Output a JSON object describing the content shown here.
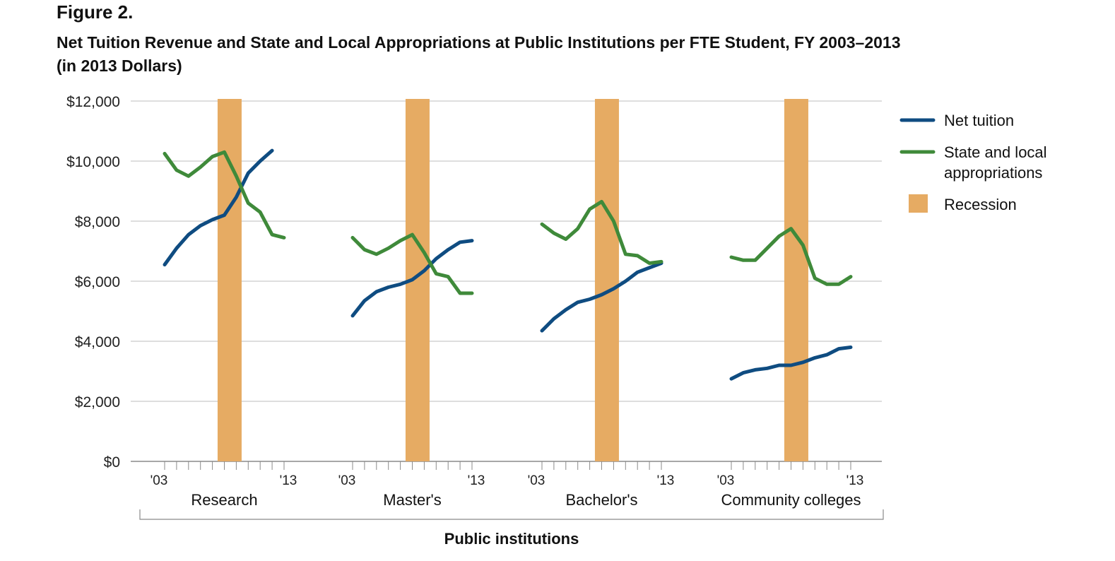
{
  "figure_label": "Figure 2.",
  "title_line1": "Net Tuition Revenue and State and Local Appropriations at Public Institutions per FTE Student, FY 2003–2013",
  "title_line2": "(in 2013 Dollars)",
  "chart_data": {
    "type": "line",
    "title": "Net Tuition Revenue and State and Local Appropriations at Public Institutions per FTE Student, FY 2003–2013 (in 2013 Dollars)",
    "xlabel": "Public institutions",
    "ylabel": "",
    "ylim": [
      0,
      12000
    ],
    "y_ticks": [
      0,
      2000,
      4000,
      6000,
      8000,
      10000,
      12000
    ],
    "y_tick_labels": [
      "$0",
      "$2,000",
      "$4,000",
      "$6,000",
      "$8,000",
      "$10,000",
      "$12,000"
    ],
    "x": [
      2003,
      2004,
      2005,
      2006,
      2007,
      2008,
      2009,
      2010,
      2011,
      2012,
      2013
    ],
    "x_tick_labels": [
      "'03",
      "'13"
    ],
    "grid": true,
    "legend_position": "right",
    "legend": {
      "net_tuition": "Net tuition",
      "state_local_line1": "State and local",
      "state_local_line2": "appropriations",
      "recession": "Recession"
    },
    "colors": {
      "net_tuition": "#0f4c81",
      "state_local": "#3f8a3a",
      "recession": "#e6ab63",
      "grid": "#bdbdbd"
    },
    "recession_years": [
      2008,
      2009
    ],
    "groups": [
      {
        "name": "Research",
        "series": [
          {
            "name": "Net tuition",
            "values": [
              6550,
              7100,
              7550,
              7850,
              8050,
              8200,
              8800,
              9600,
              10000,
              10350,
              null
            ]
          },
          {
            "name": "State and local appropriations",
            "values": [
              10250,
              9700,
              9500,
              9800,
              10150,
              10300,
              9500,
              8600,
              8300,
              7550,
              7450
            ]
          }
        ]
      },
      {
        "name": "Master's",
        "series": [
          {
            "name": "Net tuition",
            "values": [
              4850,
              5350,
              5650,
              5800,
              5900,
              6050,
              6350,
              6750,
              7050,
              7300,
              7350
            ]
          },
          {
            "name": "State and local appropriations",
            "values": [
              7450,
              7050,
              6900,
              7100,
              7350,
              7550,
              6950,
              6250,
              6150,
              5600,
              5600
            ]
          }
        ]
      },
      {
        "name": "Bachelor's",
        "series": [
          {
            "name": "Net tuition",
            "values": [
              4350,
              4750,
              5050,
              5300,
              5400,
              5550,
              5750,
              6000,
              6300,
              6450,
              6600
            ]
          },
          {
            "name": "State and local appropriations",
            "values": [
              7900,
              7600,
              7400,
              7750,
              8400,
              8650,
              8000,
              6900,
              6850,
              6600,
              6650
            ]
          }
        ]
      },
      {
        "name": "Community colleges",
        "series": [
          {
            "name": "Net tuition",
            "values": [
              2750,
              2950,
              3050,
              3100,
              3200,
              3200,
              3300,
              3450,
              3550,
              3750,
              3800
            ]
          },
          {
            "name": "State and local appropriations",
            "values": [
              6800,
              6700,
              6700,
              7100,
              7500,
              7750,
              7200,
              6100,
              5900,
              5900,
              6150
            ]
          }
        ]
      }
    ]
  }
}
